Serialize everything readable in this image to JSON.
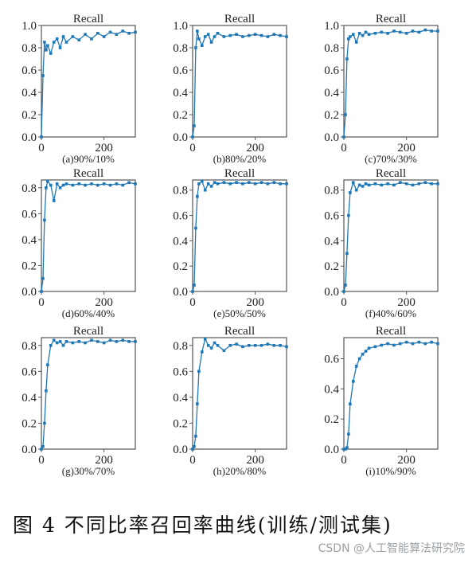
{
  "colors": {
    "series": "#1f77b4",
    "text": "#222222",
    "frame": "#555555"
  },
  "figure_caption": "图 4    不同比率召回率曲线(训练/测试集)",
  "watermark": "CSDN @人工智能算法研究院",
  "chart_data": [
    {
      "type": "line",
      "title": "Recall",
      "caption": "(a)90%/10%",
      "xlim": [
        0,
        300
      ],
      "xticks": [
        0,
        200
      ],
      "ylim": [
        0,
        1.0
      ],
      "yticks": [
        0.0,
        0.2,
        0.4,
        0.6,
        0.8,
        1.0
      ],
      "x": [
        0,
        5,
        10,
        15,
        20,
        30,
        40,
        50,
        60,
        70,
        80,
        100,
        120,
        140,
        160,
        180,
        200,
        220,
        240,
        260,
        280,
        300
      ],
      "y": [
        0.0,
        0.55,
        0.85,
        0.78,
        0.82,
        0.75,
        0.85,
        0.88,
        0.8,
        0.9,
        0.85,
        0.9,
        0.87,
        0.92,
        0.88,
        0.93,
        0.9,
        0.94,
        0.92,
        0.95,
        0.93,
        0.94
      ]
    },
    {
      "type": "line",
      "title": "Recall",
      "caption": "(b)80%/20%",
      "xlim": [
        0,
        300
      ],
      "xticks": [
        0,
        200
      ],
      "ylim": [
        0,
        1.0
      ],
      "yticks": [
        0.0,
        0.2,
        0.4,
        0.6,
        0.8,
        1.0
      ],
      "x": [
        0,
        5,
        10,
        15,
        20,
        30,
        40,
        50,
        60,
        70,
        80,
        100,
        120,
        140,
        160,
        180,
        200,
        220,
        240,
        260,
        280,
        300
      ],
      "y": [
        0.0,
        0.1,
        0.8,
        0.95,
        0.88,
        0.82,
        0.9,
        0.92,
        0.85,
        0.9,
        0.93,
        0.9,
        0.91,
        0.92,
        0.9,
        0.91,
        0.92,
        0.91,
        0.9,
        0.92,
        0.91,
        0.9
      ]
    },
    {
      "type": "line",
      "title": "Recall",
      "caption": "(c)70%/30%",
      "xlim": [
        0,
        300
      ],
      "xticks": [
        0,
        200
      ],
      "ylim": [
        0,
        1.0
      ],
      "yticks": [
        0.0,
        0.2,
        0.4,
        0.6,
        0.8,
        1.0
      ],
      "x": [
        0,
        5,
        10,
        15,
        20,
        30,
        40,
        50,
        60,
        70,
        80,
        100,
        120,
        140,
        160,
        180,
        200,
        220,
        240,
        260,
        280,
        300
      ],
      "y": [
        0.0,
        0.2,
        0.7,
        0.88,
        0.9,
        0.92,
        0.85,
        0.93,
        0.91,
        0.94,
        0.92,
        0.93,
        0.94,
        0.93,
        0.95,
        0.94,
        0.93,
        0.95,
        0.94,
        0.96,
        0.95,
        0.95
      ]
    },
    {
      "type": "line",
      "title": "Recall",
      "caption": "(d)60%/40%",
      "xlim": [
        0,
        300
      ],
      "xticks": [
        0,
        200
      ],
      "ylim": [
        0,
        0.86
      ],
      "yticks": [
        0.0,
        0.2,
        0.4,
        0.6,
        0.8
      ],
      "x": [
        0,
        5,
        10,
        15,
        20,
        30,
        40,
        50,
        60,
        70,
        80,
        100,
        120,
        140,
        160,
        180,
        200,
        220,
        240,
        260,
        280,
        300
      ],
      "y": [
        0.0,
        0.1,
        0.55,
        0.8,
        0.85,
        0.82,
        0.7,
        0.83,
        0.8,
        0.82,
        0.83,
        0.82,
        0.83,
        0.82,
        0.83,
        0.82,
        0.83,
        0.82,
        0.83,
        0.82,
        0.84,
        0.83
      ]
    },
    {
      "type": "line",
      "title": "Recall",
      "caption": "(e)50%/50%",
      "xlim": [
        0,
        300
      ],
      "xticks": [
        0,
        200
      ],
      "ylim": [
        0,
        0.88
      ],
      "yticks": [
        0.0,
        0.2,
        0.4,
        0.6,
        0.8
      ],
      "x": [
        0,
        5,
        10,
        15,
        20,
        30,
        40,
        50,
        60,
        70,
        80,
        100,
        120,
        140,
        160,
        180,
        200,
        220,
        240,
        260,
        280,
        300
      ],
      "y": [
        0.0,
        0.05,
        0.5,
        0.75,
        0.85,
        0.87,
        0.8,
        0.85,
        0.83,
        0.86,
        0.85,
        0.86,
        0.85,
        0.86,
        0.85,
        0.86,
        0.85,
        0.86,
        0.85,
        0.86,
        0.85,
        0.85
      ]
    },
    {
      "type": "line",
      "title": "Recall",
      "caption": "(f)40%/60%",
      "xlim": [
        0,
        300
      ],
      "xticks": [
        0,
        200
      ],
      "ylim": [
        0,
        0.88
      ],
      "yticks": [
        0.0,
        0.2,
        0.4,
        0.6,
        0.8
      ],
      "x": [
        0,
        5,
        10,
        15,
        20,
        30,
        40,
        50,
        60,
        70,
        80,
        100,
        120,
        140,
        160,
        180,
        200,
        220,
        240,
        260,
        280,
        300
      ],
      "y": [
        0.0,
        0.05,
        0.3,
        0.6,
        0.78,
        0.86,
        0.8,
        0.84,
        0.83,
        0.85,
        0.84,
        0.85,
        0.84,
        0.85,
        0.84,
        0.86,
        0.85,
        0.84,
        0.85,
        0.86,
        0.85,
        0.85
      ]
    },
    {
      "type": "line",
      "title": "Recall",
      "caption": "(g)30%/70%",
      "xlim": [
        0,
        300
      ],
      "xticks": [
        0,
        200
      ],
      "ylim": [
        0,
        0.86
      ],
      "yticks": [
        0.0,
        0.2,
        0.4,
        0.6,
        0.8
      ],
      "x": [
        0,
        5,
        10,
        15,
        20,
        30,
        40,
        50,
        60,
        70,
        80,
        100,
        120,
        140,
        160,
        180,
        200,
        220,
        240,
        260,
        280,
        300
      ],
      "y": [
        0.0,
        0.02,
        0.2,
        0.45,
        0.65,
        0.8,
        0.84,
        0.82,
        0.83,
        0.8,
        0.83,
        0.82,
        0.83,
        0.82,
        0.84,
        0.83,
        0.82,
        0.84,
        0.83,
        0.84,
        0.83,
        0.83
      ]
    },
    {
      "type": "line",
      "title": "Recall",
      "caption": "(h)20%/80%",
      "xlim": [
        0,
        300
      ],
      "xticks": [
        0,
        200
      ],
      "ylim": [
        0,
        0.86
      ],
      "yticks": [
        0.0,
        0.2,
        0.4,
        0.6,
        0.8
      ],
      "x": [
        0,
        5,
        10,
        15,
        20,
        30,
        40,
        50,
        60,
        70,
        80,
        100,
        120,
        140,
        160,
        180,
        200,
        220,
        240,
        260,
        280,
        300
      ],
      "y": [
        0.0,
        0.02,
        0.1,
        0.35,
        0.6,
        0.75,
        0.85,
        0.8,
        0.78,
        0.82,
        0.8,
        0.76,
        0.8,
        0.81,
        0.79,
        0.8,
        0.8,
        0.8,
        0.81,
        0.8,
        0.8,
        0.79
      ]
    },
    {
      "type": "line",
      "title": "Recall",
      "caption": "(i)10%/90%",
      "xlim": [
        0,
        300
      ],
      "xticks": [
        0,
        200
      ],
      "ylim": [
        0,
        0.74
      ],
      "yticks": [
        0.0,
        0.2,
        0.4,
        0.6
      ],
      "x": [
        0,
        5,
        10,
        15,
        20,
        30,
        40,
        50,
        60,
        70,
        80,
        100,
        120,
        140,
        160,
        180,
        200,
        220,
        240,
        260,
        280,
        300
      ],
      "y": [
        0.0,
        0.0,
        0.01,
        0.1,
        0.3,
        0.45,
        0.55,
        0.6,
        0.63,
        0.65,
        0.67,
        0.68,
        0.69,
        0.7,
        0.69,
        0.7,
        0.71,
        0.7,
        0.71,
        0.7,
        0.71,
        0.7
      ]
    }
  ]
}
